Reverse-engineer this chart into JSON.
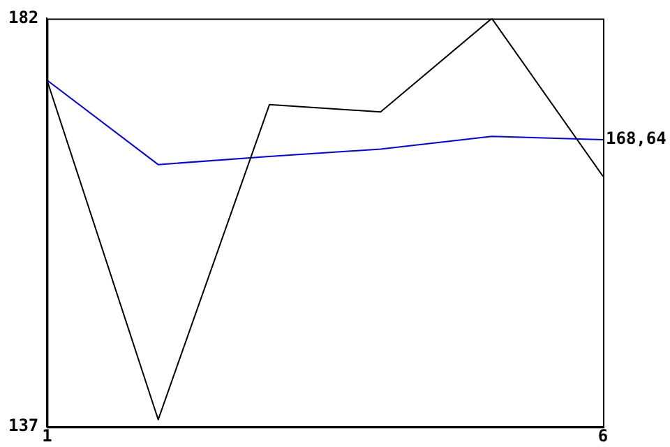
{
  "chart_data": {
    "type": "line",
    "x": [
      1,
      2,
      3,
      4,
      5,
      6
    ],
    "xlim": [
      1,
      6
    ],
    "xticks": [
      1,
      6
    ],
    "ylim": [
      137,
      182
    ],
    "yticks": [
      137,
      182
    ],
    "grid": false,
    "legend": false,
    "marker": "none",
    "line_style": "solid",
    "series": [
      {
        "color": "#000000",
        "values": [
          175.2,
          137.8,
          172.5,
          171.7,
          182,
          164.6
        ]
      },
      {
        "color": "#0000ff",
        "values": [
          175.2,
          165.9,
          166.8,
          167.6,
          169.0,
          168.64
        ]
      }
    ],
    "annotations": [
      {
        "text": "168,64",
        "x": 6,
        "y": 168.64
      }
    ]
  }
}
